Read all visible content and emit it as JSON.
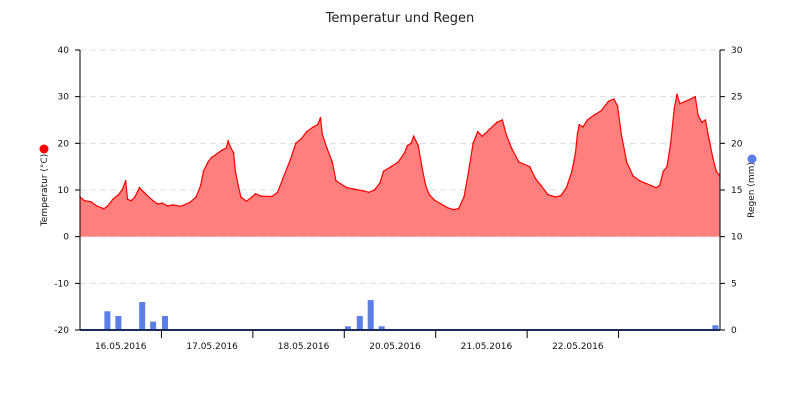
{
  "chart_data": {
    "type": "area",
    "title": "Temperatur und Regen",
    "x_tick_labels": [
      "16.05.2016",
      "17.05.2016",
      "18.05.2016",
      "20.05.2016",
      "21.05.2016",
      "22.05.2016"
    ],
    "x_range_days": [
      0,
      7
    ],
    "y_left": {
      "label": "Temperatur (°C)",
      "ticks": [
        40,
        30,
        20,
        10,
        0,
        -10,
        -20
      ],
      "range": [
        -20,
        40
      ]
    },
    "y_right": {
      "label": "Regen (mm)",
      "ticks": [
        30,
        25,
        20,
        15,
        10,
        5,
        0
      ],
      "range": [
        0,
        30
      ]
    },
    "grid": true,
    "colors": {
      "temperature_line": "#ff0000",
      "temperature_fill": "#ff7f7f",
      "rain": "#5b7fe6",
      "axis": "#000000",
      "grid": "#dddddd",
      "legend_temp_dot": "#ff0000",
      "legend_rain_dot": "#5b7fe6"
    },
    "series": [
      {
        "name": "Temperatur",
        "unit": "°C",
        "points": [
          [
            0.0,
            8.5
          ],
          [
            0.05,
            7.7
          ],
          [
            0.12,
            7.5
          ],
          [
            0.18,
            6.6
          ],
          [
            0.26,
            6.0
          ],
          [
            0.3,
            6.5
          ],
          [
            0.36,
            8.0
          ],
          [
            0.42,
            9.0
          ],
          [
            0.46,
            10.0
          ],
          [
            0.5,
            12.0
          ],
          [
            0.52,
            8.0
          ],
          [
            0.56,
            7.7
          ],
          [
            0.6,
            8.5
          ],
          [
            0.65,
            10.5
          ],
          [
            0.7,
            9.5
          ],
          [
            0.78,
            8.0
          ],
          [
            0.85,
            7.0
          ],
          [
            0.9,
            7.2
          ],
          [
            0.96,
            6.6
          ],
          [
            1.02,
            6.8
          ],
          [
            1.1,
            6.5
          ],
          [
            1.2,
            7.3
          ],
          [
            1.27,
            8.5
          ],
          [
            1.32,
            11.0
          ],
          [
            1.35,
            14.0
          ],
          [
            1.4,
            16.0
          ],
          [
            1.44,
            17.0
          ],
          [
            1.48,
            17.5
          ],
          [
            1.55,
            18.5
          ],
          [
            1.6,
            19.0
          ],
          [
            1.62,
            20.5
          ],
          [
            1.65,
            19.0
          ],
          [
            1.68,
            18.0
          ],
          [
            1.7,
            14.0
          ],
          [
            1.73,
            11.0
          ],
          [
            1.76,
            8.5
          ],
          [
            1.82,
            7.6
          ],
          [
            1.88,
            8.5
          ],
          [
            1.92,
            9.2
          ],
          [
            1.98,
            8.7
          ],
          [
            2.1,
            8.6
          ],
          [
            2.16,
            9.5
          ],
          [
            2.22,
            12.5
          ],
          [
            2.3,
            16.5
          ],
          [
            2.36,
            20.0
          ],
          [
            2.42,
            21.0
          ],
          [
            2.48,
            22.5
          ],
          [
            2.55,
            23.5
          ],
          [
            2.6,
            24.0
          ],
          [
            2.63,
            25.5
          ],
          [
            2.65,
            22.0
          ],
          [
            2.7,
            19.0
          ],
          [
            2.76,
            16.0
          ],
          [
            2.8,
            12.0
          ],
          [
            2.86,
            11.2
          ],
          [
            2.92,
            10.5
          ],
          [
            3.0,
            10.2
          ],
          [
            3.1,
            9.8
          ],
          [
            3.16,
            9.5
          ],
          [
            3.22,
            10.0
          ],
          [
            3.28,
            11.5
          ],
          [
            3.32,
            14.0
          ],
          [
            3.4,
            15.0
          ],
          [
            3.48,
            16.0
          ],
          [
            3.55,
            18.0
          ],
          [
            3.58,
            19.5
          ],
          [
            3.62,
            20.0
          ],
          [
            3.65,
            21.5
          ],
          [
            3.7,
            19.5
          ],
          [
            3.74,
            15.0
          ],
          [
            3.78,
            11.0
          ],
          [
            3.82,
            9.0
          ],
          [
            3.88,
            7.8
          ],
          [
            3.95,
            7.0
          ],
          [
            4.02,
            6.2
          ],
          [
            4.08,
            5.8
          ],
          [
            4.14,
            6.0
          ],
          [
            4.2,
            8.5
          ],
          [
            4.25,
            14.0
          ],
          [
            4.3,
            20.0
          ],
          [
            4.35,
            22.5
          ],
          [
            4.4,
            21.5
          ],
          [
            4.48,
            23.0
          ],
          [
            4.56,
            24.5
          ],
          [
            4.62,
            25.0
          ],
          [
            4.66,
            22.0
          ],
          [
            4.72,
            19.0
          ],
          [
            4.8,
            16.0
          ],
          [
            4.92,
            15.0
          ],
          [
            4.98,
            12.5
          ],
          [
            5.04,
            11.0
          ],
          [
            5.12,
            9.0
          ],
          [
            5.2,
            8.5
          ],
          [
            5.26,
            8.8
          ],
          [
            5.32,
            10.5
          ],
          [
            5.38,
            14.0
          ],
          [
            5.42,
            18.0
          ],
          [
            5.44,
            22.0
          ],
          [
            5.46,
            24.0
          ],
          [
            5.5,
            23.5
          ],
          [
            5.55,
            25.0
          ],
          [
            5.62,
            26.0
          ],
          [
            5.7,
            27.0
          ],
          [
            5.78,
            29.0
          ],
          [
            5.84,
            29.5
          ],
          [
            5.88,
            28.0
          ],
          [
            5.92,
            22.0
          ],
          [
            5.98,
            16.0
          ],
          [
            6.05,
            13.0
          ],
          [
            6.12,
            12.0
          ],
          [
            6.18,
            11.5
          ],
          [
            6.24,
            11.0
          ],
          [
            6.3,
            10.5
          ],
          [
            6.34,
            11.0
          ],
          [
            6.38,
            14.0
          ],
          [
            6.42,
            15.0
          ],
          [
            6.46,
            20.0
          ],
          [
            6.5,
            27.5
          ],
          [
            6.53,
            30.5
          ],
          [
            6.56,
            28.5
          ],
          [
            6.62,
            29.0
          ],
          [
            6.68,
            29.5
          ],
          [
            6.73,
            30.0
          ],
          [
            6.76,
            26.0
          ],
          [
            6.8,
            24.5
          ],
          [
            6.84,
            25.0
          ],
          [
            6.88,
            21.0
          ],
          [
            6.92,
            17.0
          ],
          [
            6.96,
            14.0
          ],
          [
            7.0,
            13.0
          ]
        ]
      },
      {
        "name": "Regen",
        "unit": "mm",
        "bars": [
          [
            0.3,
            2.0
          ],
          [
            0.42,
            1.5
          ],
          [
            0.68,
            3.0
          ],
          [
            0.8,
            0.9
          ],
          [
            0.93,
            1.5
          ],
          [
            2.93,
            0.4
          ],
          [
            3.06,
            1.5
          ],
          [
            3.18,
            3.2
          ],
          [
            3.3,
            0.4
          ],
          [
            6.95,
            0.5
          ]
        ]
      }
    ]
  }
}
